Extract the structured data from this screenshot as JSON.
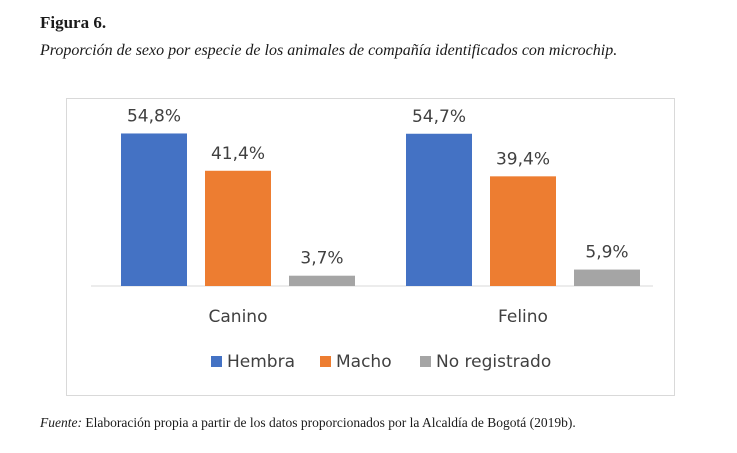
{
  "figure": {
    "label": "Figura 6.",
    "caption": "Proporción de sexo por especie de los animales de compañía identificados con microchip."
  },
  "source": {
    "label": "Fuente:",
    "text": " Elaboración propia a partir de los datos proporcionados por la Alcaldía de Bogotá (2019b)."
  },
  "chart_data": {
    "type": "bar",
    "categories": [
      "Canino",
      "Felino"
    ],
    "series": [
      {
        "name": "Hembra",
        "values": [
          54.8,
          54.7
        ],
        "labels": [
          "54,8%",
          "54,7%"
        ],
        "color": "#4472C4"
      },
      {
        "name": "Macho",
        "values": [
          41.4,
          39.4
        ],
        "labels": [
          "41,4%",
          "39,4%"
        ],
        "color": "#ED7D31"
      },
      {
        "name": "No registrado",
        "values": [
          3.7,
          5.9
        ],
        "labels": [
          "3,7%",
          "5,9%"
        ],
        "color": "#A5A5A5"
      }
    ],
    "ylim": [
      0,
      60
    ],
    "grid": false,
    "legend_position": "bottom",
    "title": "",
    "xlabel": "",
    "ylabel": ""
  }
}
